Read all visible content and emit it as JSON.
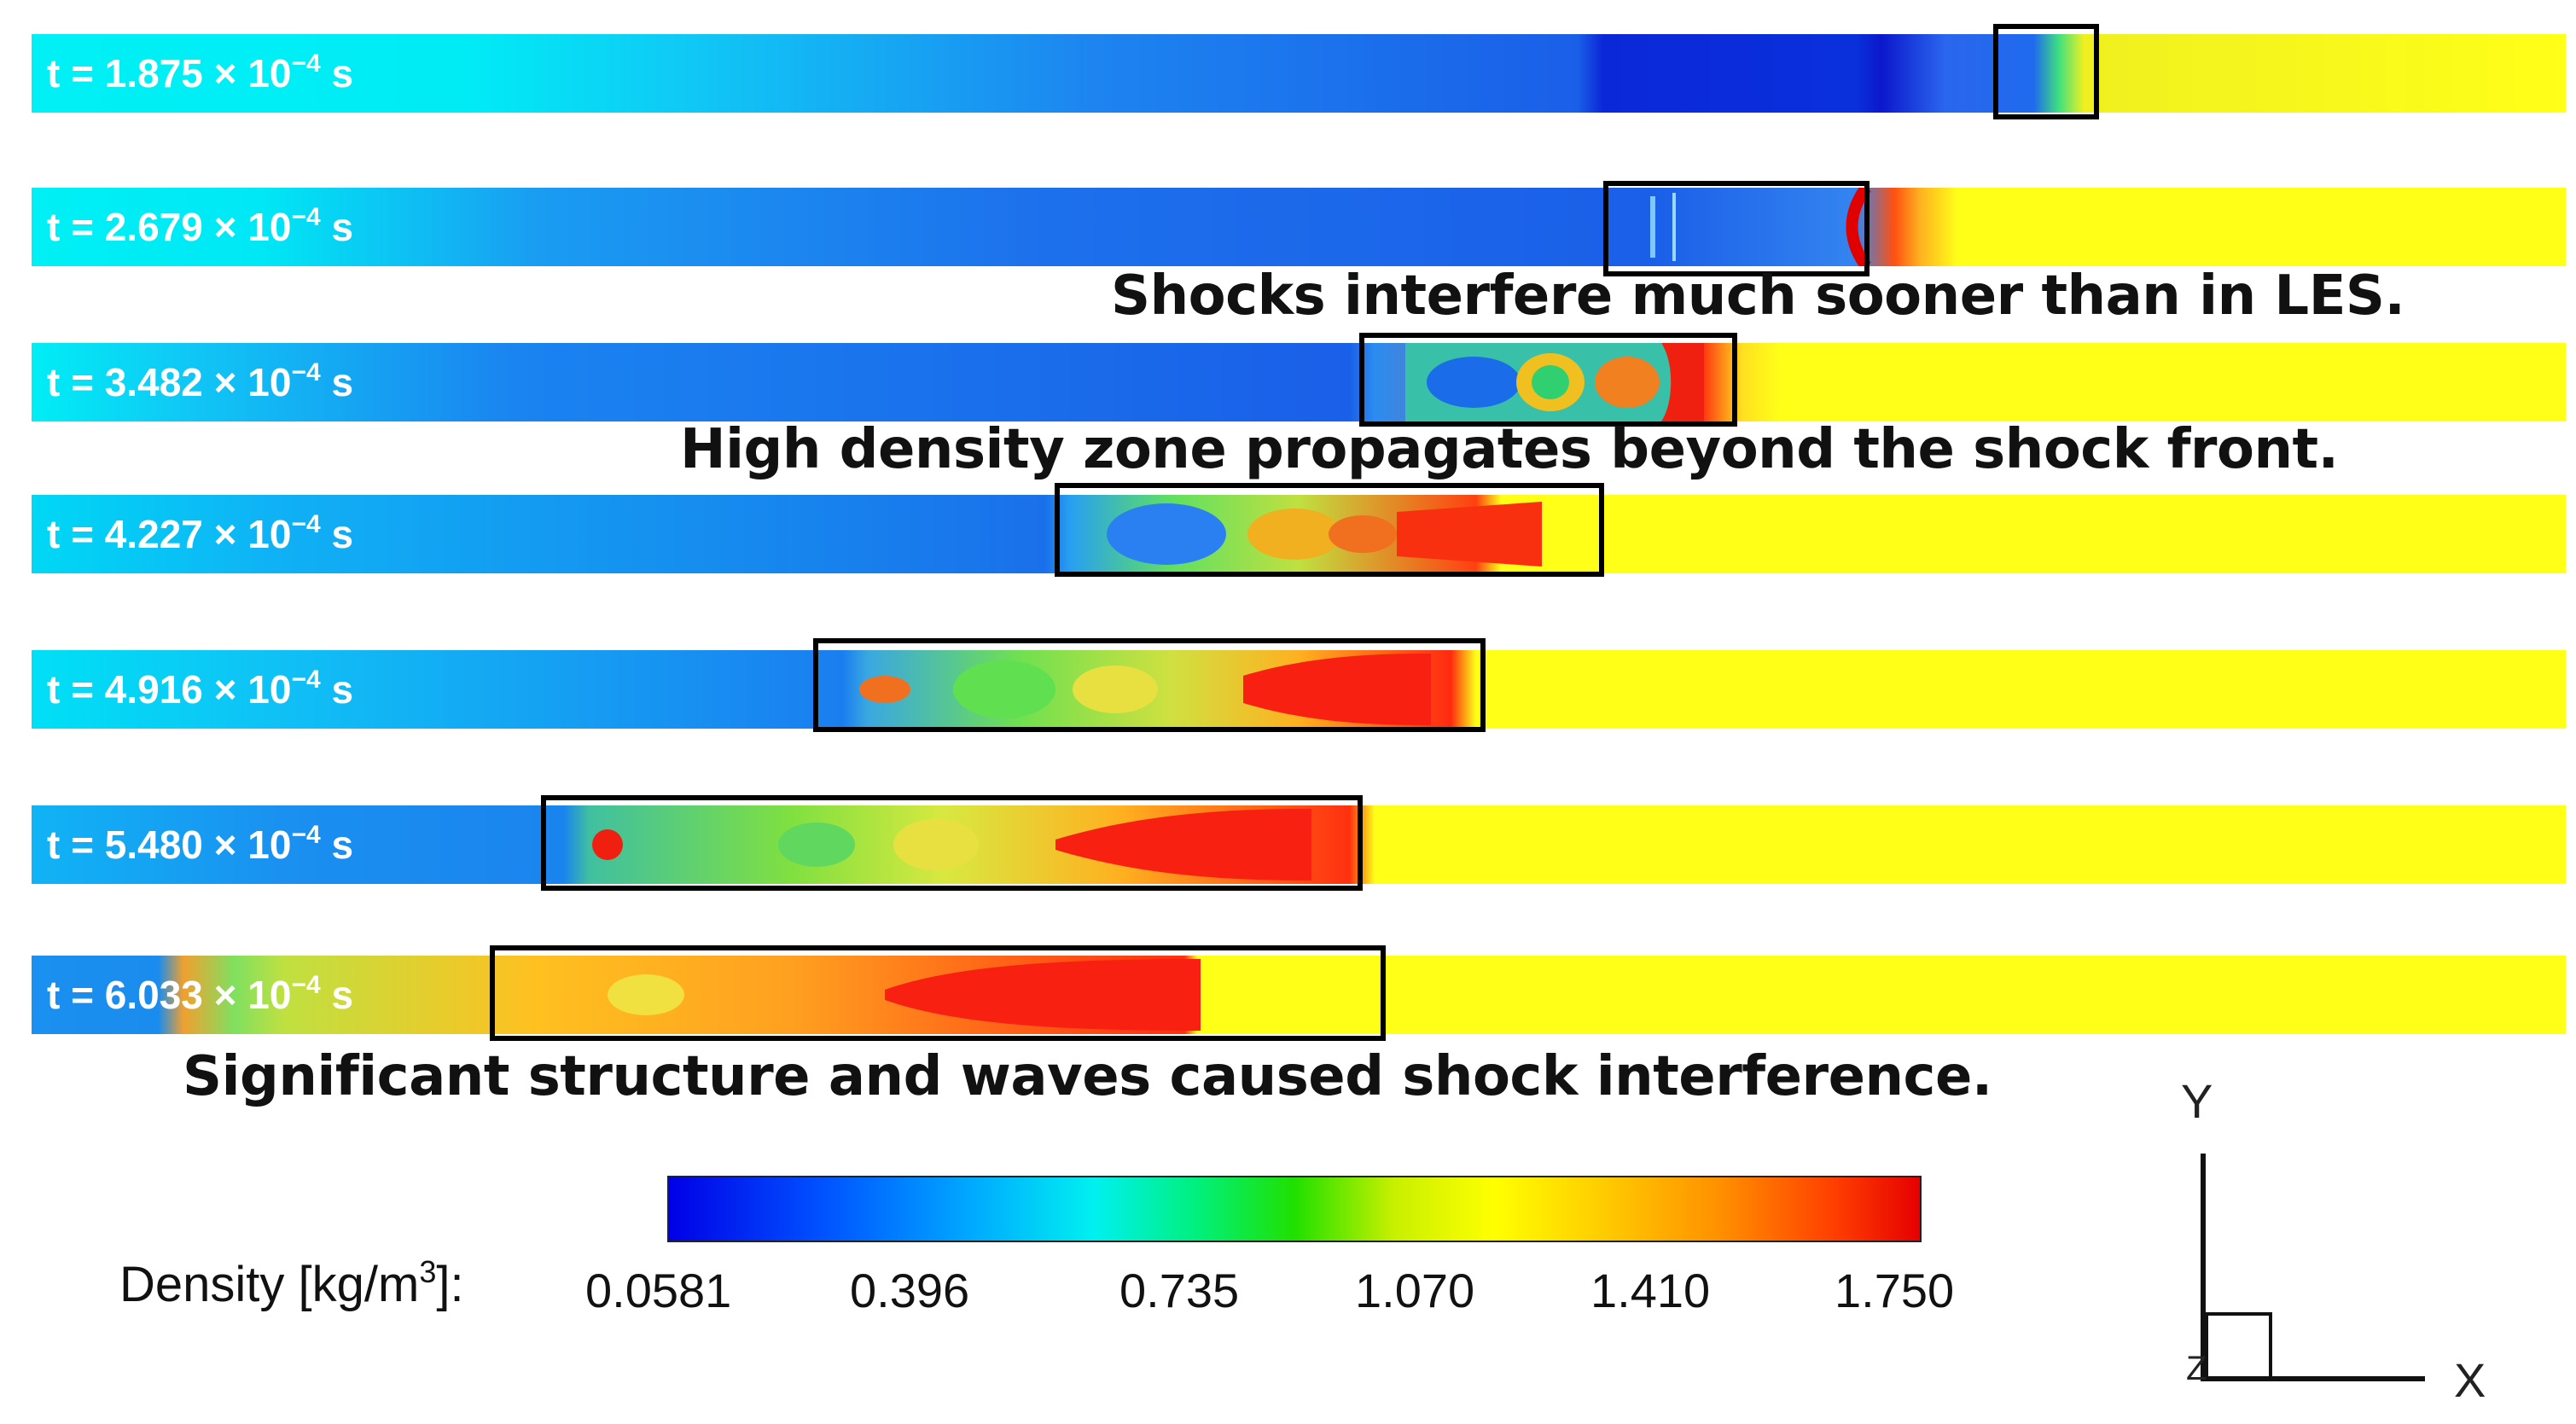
{
  "snapshots": [
    {
      "t_value": "1.875",
      "label_prefix": "t = ",
      "times": " × 10",
      "exponent": "−4",
      "unit": " s"
    },
    {
      "t_value": "2.679",
      "label_prefix": "t = ",
      "times": " × 10",
      "exponent": "−4",
      "unit": " s"
    },
    {
      "t_value": "3.482",
      "label_prefix": "t = ",
      "times": " × 10",
      "exponent": "−4",
      "unit": " s"
    },
    {
      "t_value": "4.227",
      "label_prefix": "t = ",
      "times": " × 10",
      "exponent": "−4",
      "unit": " s"
    },
    {
      "t_value": "4.916",
      "label_prefix": "t = ",
      "times": " × 10",
      "exponent": "−4",
      "unit": " s"
    },
    {
      "t_value": "5.480",
      "label_prefix": "t = ",
      "times": " × 10",
      "exponent": "−4",
      "unit": " s"
    },
    {
      "t_value": "6.033",
      "label_prefix": "t = ",
      "times": " × 10",
      "exponent": "−4",
      "unit": " s"
    }
  ],
  "annotations": {
    "a1": "Shocks interfere much sooner than in LES.",
    "a2": "High density zone propagates beyond the shock front.",
    "a3": "Significant structure and waves caused shock interference."
  },
  "colorbar": {
    "label_text": "Density [kg/m",
    "label_exp": "3",
    "label_end": "]:",
    "ticks": [
      "0.0581",
      "0.396",
      "0.735",
      "1.070",
      "1.410",
      "1.750"
    ],
    "colors": [
      "#0000e6",
      "#00a8ff",
      "#00f0f0",
      "#20e000",
      "#ffff00",
      "#ff9000",
      "#e60000"
    ]
  },
  "axes": {
    "y_label": "Y",
    "x_label": "X",
    "z_label": "Z"
  }
}
